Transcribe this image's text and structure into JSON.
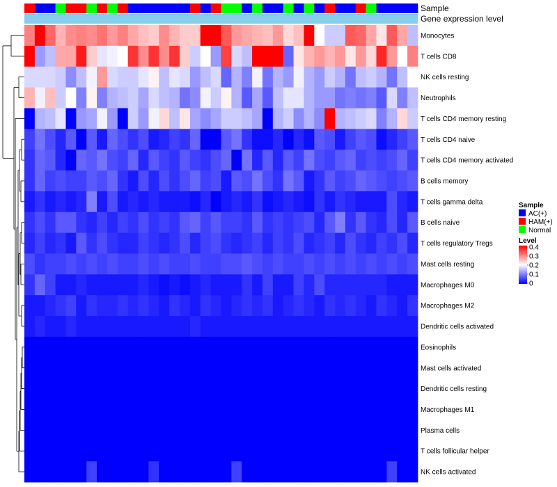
{
  "chart_data": {
    "type": "heatmap",
    "title": "",
    "annotation_labels": {
      "sample": "Sample",
      "level_bar": "Gene expression level"
    },
    "sample_groups": [
      "H",
      "A",
      "A",
      "N",
      "H",
      "H",
      "N",
      "H",
      "N",
      "H",
      "A",
      "A",
      "A",
      "A",
      "A",
      "A",
      "H",
      "A",
      "H",
      "N",
      "N",
      "A",
      "N",
      "A",
      "A",
      "N",
      "A",
      "N",
      "A",
      "H",
      "A",
      "A",
      "H",
      "N",
      "A",
      "A",
      "A",
      "A"
    ],
    "sample_group_legend": {
      "title": "Sample",
      "entries": [
        {
          "key": "A",
          "label": "AC(+)",
          "color": "#0000ff"
        },
        {
          "key": "H",
          "label": "HAM(+)",
          "color": "#ff0000"
        },
        {
          "key": "N",
          "label": "Normal",
          "color": "#00ff00"
        }
      ]
    },
    "level_bar_color": "#87ceeb",
    "color_scale": {
      "title": "Level",
      "min": 0,
      "mid": 0.2,
      "max": 0.4,
      "colors": [
        "#0000ff",
        "#ffffff",
        "#ff0000"
      ],
      "ticks": [
        "0.4",
        "0.3",
        "0.2",
        "0.1",
        "0"
      ]
    },
    "rows": [
      "Monocytes",
      "T cells CD8",
      "NK cells resting",
      "Neutrophils",
      "T cells CD4 memory resting",
      "T cells CD4 naive",
      "T cells CD4 memory activated",
      "B cells memory",
      "T cells gamma delta",
      "B cells naive",
      "T cells regulatory  Tregs",
      "Mast cells resting",
      "Macrophages M0",
      "Macrophages M2",
      "Dendritic cells activated",
      "Eosinophils",
      "Mast cells activated",
      "Dendritic cells resting",
      "Macrophages M1",
      "Plasma cells",
      "T cells follicular helper",
      "NK cells activated"
    ],
    "values": [
      [
        0.3,
        0.42,
        0.32,
        0.26,
        0.29,
        0.3,
        0.29,
        0.31,
        0.28,
        0.3,
        0.27,
        0.25,
        0.24,
        0.29,
        0.26,
        0.24,
        0.24,
        0.42,
        0.42,
        0.33,
        0.28,
        0.27,
        0.26,
        0.25,
        0.28,
        0.23,
        0.25,
        0.42,
        0.2,
        0.16,
        0.16,
        0.33,
        0.32,
        0.27,
        0.22,
        0.33,
        0.27,
        0.15
      ],
      [
        0.4,
        0.12,
        0.15,
        0.27,
        0.27,
        0.38,
        0.24,
        0.18,
        0.19,
        0.2,
        0.36,
        0.29,
        0.36,
        0.29,
        0.36,
        0.24,
        0.16,
        0.2,
        0.12,
        0.35,
        0.17,
        0.15,
        0.42,
        0.42,
        0.42,
        0.08,
        0.22,
        0.26,
        0.28,
        0.26,
        0.28,
        0.22,
        0.28,
        0.23,
        0.37,
        0.28,
        0.2,
        0.3
      ],
      [
        0.17,
        0.17,
        0.17,
        0.16,
        0.11,
        0.15,
        0.19,
        0.28,
        0.17,
        0.16,
        0.16,
        0.18,
        0.21,
        0.15,
        0.18,
        0.17,
        0.12,
        0.15,
        0.17,
        0.08,
        0.14,
        0.1,
        0.19,
        0.09,
        0.14,
        0.12,
        0.19,
        0.14,
        0.12,
        0.16,
        0.14,
        0.09,
        0.15,
        0.16,
        0.14,
        0.09,
        0.15,
        0.2
      ],
      [
        0.26,
        0.19,
        0.25,
        0.16,
        0.2,
        0.1,
        0.21,
        0.1,
        0.14,
        0.15,
        0.16,
        0.13,
        0.17,
        0.15,
        0.14,
        0.09,
        0.11,
        0.19,
        0.16,
        0.21,
        0.14,
        0.07,
        0.13,
        0.07,
        0.15,
        0.18,
        0.18,
        0.14,
        0.12,
        0.12,
        0.09,
        0.1,
        0.09,
        0.1,
        0.07,
        0.17,
        0.1,
        0.15
      ],
      [
        0.0,
        0.14,
        0.15,
        0.18,
        0.0,
        0.12,
        0.13,
        0.19,
        0.12,
        0.0,
        0.16,
        0.12,
        0.19,
        0.23,
        0.15,
        0.22,
        0.13,
        0.11,
        0.13,
        0.16,
        0.16,
        0.15,
        0.13,
        0.0,
        0.14,
        0.16,
        0.11,
        0.14,
        0.11,
        0.42,
        0.14,
        0.15,
        0.16,
        0.17,
        0.1,
        0.14,
        0.23,
        0.16
      ],
      [
        0.05,
        0.09,
        0.06,
        0.03,
        0.07,
        0.0,
        0.07,
        0.02,
        0.08,
        0.06,
        0.04,
        0.06,
        0.02,
        0.03,
        0.05,
        0.04,
        0.08,
        0.0,
        0.0,
        0.07,
        0.09,
        0.04,
        0.01,
        0.01,
        0.03,
        0.0,
        0.03,
        0.01,
        0.07,
        0.06,
        0.02,
        0.05,
        0.07,
        0.06,
        0.01,
        0.03,
        0.05,
        0.07
      ],
      [
        0.04,
        0.08,
        0.07,
        0.03,
        0.0,
        0.08,
        0.07,
        0.09,
        0.06,
        0.05,
        0.08,
        0.03,
        0.07,
        0.05,
        0.04,
        0.07,
        0.05,
        0.04,
        0.06,
        0.08,
        0.0,
        0.09,
        0.03,
        0.07,
        0.03,
        0.07,
        0.05,
        0.09,
        0.06,
        0.05,
        0.07,
        0.08,
        0.05,
        0.06,
        0.05,
        0.06,
        0.08,
        0.05
      ],
      [
        0.04,
        0.08,
        0.05,
        0.06,
        0.05,
        0.05,
        0.07,
        0.06,
        0.08,
        0.04,
        0.02,
        0.06,
        0.03,
        0.06,
        0.04,
        0.06,
        0.08,
        0.05,
        0.06,
        0.02,
        0.07,
        0.06,
        0.09,
        0.06,
        0.04,
        0.09,
        0.07,
        0.02,
        0.04,
        0.07,
        0.05,
        0.06,
        0.08,
        0.07,
        0.06,
        0.05,
        0.06,
        0.07
      ],
      [
        0.02,
        0.04,
        0.02,
        0.03,
        0.02,
        0.03,
        0.1,
        0.02,
        0.06,
        0.02,
        0.03,
        0.02,
        0.03,
        0.02,
        0.02,
        0.02,
        0.01,
        0.03,
        0.0,
        0.02,
        0.03,
        0.02,
        0.04,
        0.01,
        0.02,
        0.03,
        0.02,
        0.01,
        0.04,
        0.02,
        0.04,
        0.03,
        0.02,
        0.02,
        0.02,
        0.06,
        0.03,
        0.02
      ],
      [
        0.04,
        0.06,
        0.04,
        0.07,
        0.07,
        0.04,
        0.03,
        0.05,
        0.03,
        0.05,
        0.04,
        0.06,
        0.04,
        0.05,
        0.04,
        0.07,
        0.08,
        0.05,
        0.07,
        0.05,
        0.05,
        0.04,
        0.07,
        0.04,
        0.05,
        0.04,
        0.05,
        0.06,
        0.03,
        0.07,
        0.1,
        0.04,
        0.07,
        0.04,
        0.03,
        0.06,
        0.03,
        0.07
      ],
      [
        0.03,
        0.05,
        0.03,
        0.04,
        0.02,
        0.07,
        0.04,
        0.06,
        0.04,
        0.03,
        0.03,
        0.05,
        0.04,
        0.03,
        0.04,
        0.06,
        0.03,
        0.05,
        0.06,
        0.04,
        0.03,
        0.04,
        0.05,
        0.03,
        0.05,
        0.04,
        0.06,
        0.03,
        0.04,
        0.05,
        0.03,
        0.06,
        0.04,
        0.03,
        0.05,
        0.04,
        0.06,
        0.03
      ],
      [
        0.06,
        0.04,
        0.05,
        0.05,
        0.06,
        0.05,
        0.06,
        0.05,
        0.06,
        0.05,
        0.05,
        0.06,
        0.05,
        0.06,
        0.05,
        0.05,
        0.06,
        0.05,
        0.05,
        0.06,
        0.06,
        0.07,
        0.06,
        0.05,
        0.06,
        0.05,
        0.05,
        0.06,
        0.05,
        0.06,
        0.05,
        0.06,
        0.05,
        0.06,
        0.05,
        0.06,
        0.05,
        0.06
      ],
      [
        0.04,
        0.08,
        0.05,
        0.02,
        0.02,
        0.03,
        0.02,
        0.02,
        0.02,
        0.02,
        0.02,
        0.03,
        0.02,
        0.01,
        0.02,
        0.01,
        0.02,
        0.03,
        0.02,
        0.02,
        0.02,
        0.04,
        0.02,
        0.05,
        0.02,
        0.02,
        0.05,
        0.03,
        0.06,
        0.03,
        0.03,
        0.03,
        0.03,
        0.03,
        0.03,
        0.02,
        0.02,
        0.02
      ],
      [
        0.02,
        0.02,
        0.03,
        0.04,
        0.05,
        0.02,
        0.04,
        0.03,
        0.03,
        0.04,
        0.03,
        0.04,
        0.03,
        0.02,
        0.04,
        0.03,
        0.02,
        0.04,
        0.03,
        0.02,
        0.03,
        0.04,
        0.03,
        0.04,
        0.02,
        0.03,
        0.04,
        0.03,
        0.02,
        0.04,
        0.03,
        0.04,
        0.03,
        0.02,
        0.04,
        0.03,
        0.02,
        0.04
      ],
      [
        0.02,
        0.03,
        0.02,
        0.02,
        0.03,
        0.02,
        0.02,
        0.02,
        0.02,
        0.02,
        0.02,
        0.02,
        0.02,
        0.02,
        0.02,
        0.02,
        0.03,
        0.02,
        0.02,
        0.02,
        0.02,
        0.02,
        0.02,
        0.02,
        0.02,
        0.02,
        0.02,
        0.02,
        0.02,
        0.02,
        0.02,
        0.02,
        0.02,
        0.02,
        0.02,
        0.02,
        0.02,
        0.02
      ],
      [
        0,
        0,
        0,
        0,
        0,
        0,
        0,
        0,
        0,
        0,
        0,
        0,
        0,
        0,
        0,
        0,
        0,
        0,
        0,
        0,
        0,
        0,
        0,
        0,
        0,
        0,
        0,
        0,
        0,
        0,
        0,
        0,
        0,
        0,
        0,
        0,
        0,
        0
      ],
      [
        0,
        0,
        0,
        0,
        0,
        0,
        0,
        0,
        0,
        0,
        0,
        0,
        0,
        0,
        0,
        0,
        0,
        0,
        0,
        0,
        0,
        0,
        0,
        0,
        0,
        0,
        0,
        0,
        0,
        0,
        0,
        0,
        0,
        0,
        0,
        0,
        0,
        0
      ],
      [
        0,
        0,
        0,
        0,
        0,
        0,
        0,
        0,
        0,
        0,
        0,
        0,
        0,
        0,
        0,
        0,
        0,
        0,
        0,
        0,
        0,
        0,
        0,
        0,
        0,
        0,
        0,
        0,
        0,
        0,
        0,
        0,
        0,
        0,
        0,
        0,
        0,
        0
      ],
      [
        0,
        0,
        0,
        0,
        0,
        0,
        0,
        0,
        0,
        0,
        0,
        0,
        0,
        0,
        0,
        0,
        0,
        0,
        0,
        0,
        0,
        0,
        0,
        0,
        0,
        0,
        0,
        0,
        0,
        0,
        0,
        0,
        0,
        0,
        0,
        0,
        0,
        0
      ],
      [
        0,
        0,
        0,
        0,
        0,
        0,
        0,
        0,
        0,
        0,
        0,
        0,
        0,
        0,
        0,
        0,
        0,
        0,
        0,
        0,
        0,
        0,
        0,
        0,
        0,
        0,
        0,
        0,
        0,
        0,
        0,
        0,
        0,
        0,
        0,
        0,
        0,
        0
      ],
      [
        0,
        0,
        0,
        0,
        0,
        0,
        0,
        0,
        0,
        0,
        0,
        0,
        0,
        0,
        0,
        0,
        0,
        0,
        0,
        0,
        0,
        0,
        0,
        0,
        0,
        0,
        0,
        0,
        0,
        0,
        0,
        0,
        0,
        0,
        0,
        0,
        0,
        0
      ],
      [
        0,
        0,
        0,
        0,
        0,
        0,
        0.05,
        0,
        0,
        0,
        0,
        0,
        0.04,
        0,
        0,
        0,
        0,
        0,
        0,
        0,
        0.05,
        0,
        0,
        0,
        0,
        0,
        0,
        0,
        0,
        0,
        0,
        0,
        0,
        0,
        0,
        0.05,
        0,
        0
      ]
    ]
  }
}
